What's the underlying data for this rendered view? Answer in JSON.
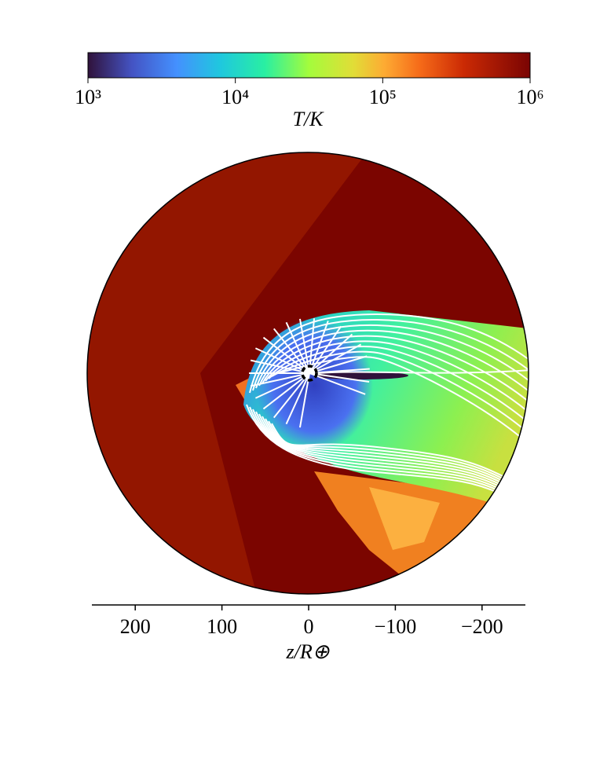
{
  "chart_data": {
    "type": "heatmap",
    "colorbar": {
      "label": "T/K",
      "lim": [
        1000,
        1000000
      ],
      "log": true,
      "ticks": [
        {
          "value": 1000,
          "label": "10³"
        },
        {
          "value": 10000,
          "label": "10⁴"
        },
        {
          "value": 100000,
          "label": "10⁵"
        },
        {
          "value": 1000000,
          "label": "10⁶"
        }
      ]
    },
    "xlabel": "z/R⊕",
    "xlim": [
      250,
      -250
    ],
    "xticks": [
      200,
      100,
      0,
      {
        "value": -100,
        "label": "−100"
      },
      {
        "value": -200,
        "label": "−200"
      }
    ]
  }
}
